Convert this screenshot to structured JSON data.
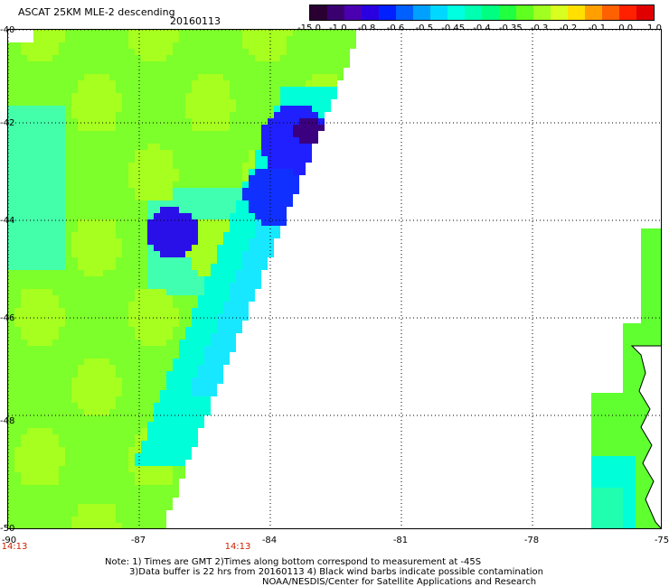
{
  "header": {
    "title": "ASCAT 25KM MLE-2 descending",
    "date": "20160113"
  },
  "colorbar": {
    "colors": [
      "#2a0033",
      "#3b0070",
      "#4a00b0",
      "#2a00e0",
      "#0020ff",
      "#0060ff",
      "#00a0ff",
      "#00d8ff",
      "#00ffe0",
      "#00ffb0",
      "#00ff80",
      "#20ff40",
      "#60ff20",
      "#a0ff20",
      "#d8ff20",
      "#ffe000",
      "#ffa000",
      "#ff6000",
      "#ff2000",
      "#e00000"
    ],
    "tick_labels": [
      "-15.0",
      "-1.0",
      "-0.8",
      "-0.6",
      "-0.5",
      "-0.45",
      "-0.4",
      "-0.35",
      "-0.3",
      "-0.2",
      "-0.1",
      "0.0",
      "1.0"
    ]
  },
  "map": {
    "lat_labels": [
      "-40",
      "-42",
      "-44",
      "-46",
      "-48",
      "-50"
    ],
    "lon_labels": [
      "-90",
      "-87",
      "-84",
      "-81",
      "-78",
      "-75"
    ],
    "time_labels": [
      "14:13",
      "14:13"
    ]
  },
  "notes": {
    "line1": "Note: 1) Times are GMT 2)Times along bottom correspond to measurement at -45S",
    "line2": "3)Data buffer is 22 hrs from 20160113 4) Black wind barbs indicate possible contamination",
    "line3": "NOAA/NESDIS/Center for Satellite Applications and Research"
  }
}
